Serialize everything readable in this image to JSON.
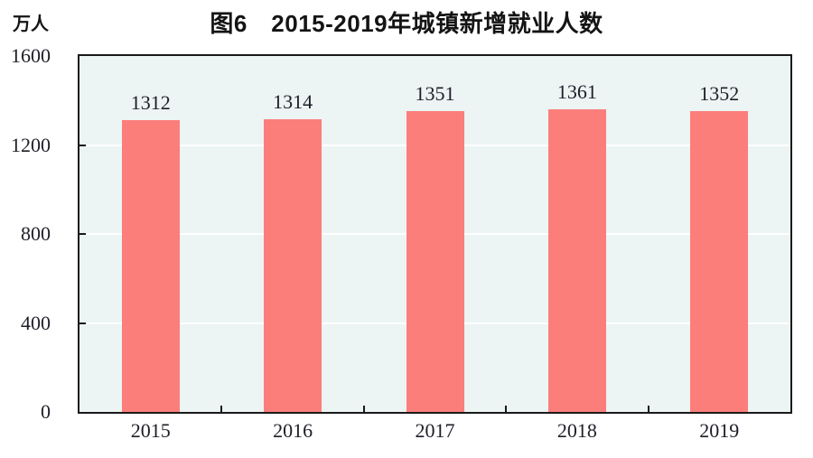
{
  "figure_number": "图6",
  "chart_data": {
    "type": "bar",
    "title": "图6　2015-2019年城镇新增就业人数",
    "ylabel": "万人",
    "xlabel": "",
    "categories": [
      "2015",
      "2016",
      "2017",
      "2018",
      "2019"
    ],
    "values": [
      1312,
      1314,
      1351,
      1361,
      1352
    ],
    "data_labels": [
      "1312",
      "1314",
      "1351",
      "1361",
      "1352"
    ],
    "ylim": [
      0,
      1600
    ],
    "yticks": [
      0,
      400,
      800,
      1200,
      1600
    ],
    "grid": "horizontal",
    "legend": "none",
    "colors": {
      "bar_fill": "#FB7E7A",
      "plot_background": "#ECF4F4",
      "gridline": "#FFFFFF",
      "axis": "#1A1A1A",
      "number_text": "#1E1E28",
      "title_text": "#141414"
    }
  }
}
